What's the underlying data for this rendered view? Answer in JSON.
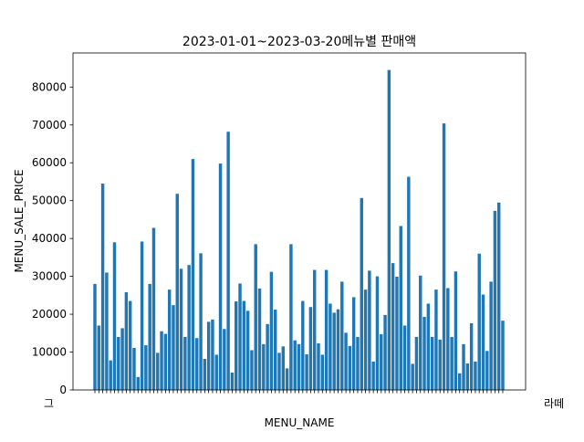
{
  "chart_data": {
    "type": "bar",
    "title": "2023-01-01~2023-03-20메뉴별 판매액",
    "xlabel": "MENU_NAME",
    "ylabel": "MENU_SALE_PRICE",
    "ylim": [
      0,
      89000
    ],
    "yticks": [
      0,
      10000,
      20000,
      30000,
      40000,
      50000,
      60000,
      70000,
      80000
    ],
    "ytick_labels": [
      "0",
      "10000",
      "20000",
      "30000",
      "40000",
      "50000",
      "60000",
      "70000",
      "80000"
    ],
    "xtick_labels_legible": {
      "first": "그",
      "last": "라떼"
    },
    "bar_color": "#1f77b4",
    "values": [
      28000,
      17000,
      54500,
      31000,
      7800,
      39000,
      14000,
      16300,
      25800,
      23500,
      11100,
      3400,
      39200,
      11800,
      28000,
      42800,
      9800,
      15500,
      14800,
      26500,
      22400,
      51800,
      32000,
      14000,
      33000,
      61000,
      13700,
      36100,
      8200,
      18000,
      18600,
      9300,
      59800,
      16100,
      68200,
      4600,
      23400,
      28100,
      23500,
      20900,
      10500,
      38500,
      26800,
      12100,
      17400,
      31200,
      21200,
      9800,
      11500,
      5700,
      38500,
      13100,
      12100,
      23500,
      9400,
      21900,
      31700,
      12300,
      9300,
      31700,
      22800,
      20400,
      21300,
      28600,
      15100,
      11600,
      24500,
      14000,
      50700,
      26500,
      31500,
      7500,
      30000,
      14700,
      19800,
      84500,
      33500,
      29900,
      43300,
      17000,
      56300,
      6900,
      14000,
      30200,
      19300,
      22800,
      14000,
      26500,
      13300,
      70400,
      26900,
      14000,
      31300,
      4400,
      12100,
      7000,
      17600,
      7500,
      36000,
      25200,
      10300,
      28600,
      47300,
      49500,
      18300
    ]
  }
}
